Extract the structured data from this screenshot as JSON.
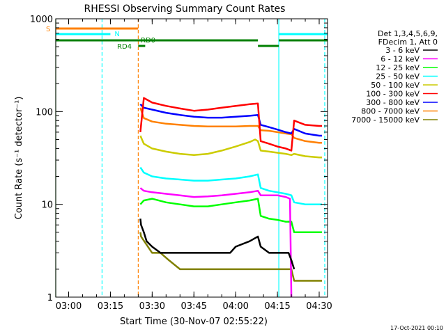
{
  "chart_data": {
    "type": "line",
    "title": "RHESSI Observing Summary Count Rates",
    "xlabel": "Start Time (30-Nov-07 02:55:22)",
    "ylabel": "Count Rate (s⁻¹ detector⁻¹)",
    "y_scale": "log",
    "ylim": [
      1,
      1000
    ],
    "xlim": [
      "02:55:22",
      "04:33:00"
    ],
    "x_ticks": [
      "03:00",
      "03:15",
      "03:30",
      "03:45",
      "04:00",
      "04:15",
      "04:30"
    ],
    "y_ticks": [
      "1",
      "10",
      "100",
      "1000"
    ],
    "legend_header": [
      "Det 1,3,4,5,6,9,",
      "FDecim 1, Att 0"
    ],
    "legend_position": "right",
    "timestamp": "17-Oct-2021 00:10",
    "series": [
      {
        "name": "3 - 6 keV",
        "color": "#000000",
        "x": [
          "03:25:45",
          "03:26",
          "03:27",
          "03:28",
          "03:30",
          "03:33",
          "03:36",
          "03:40",
          "03:45",
          "03:50",
          "03:55",
          "03:58",
          "04:00",
          "04:05",
          "04:08",
          "04:09",
          "04:12",
          "04:15",
          "04:17",
          "04:19",
          "04:20",
          "04:21"
        ],
        "values": [
          7,
          6,
          5,
          4,
          3.5,
          3,
          3,
          3,
          3,
          3,
          3,
          3,
          3.5,
          4,
          4.5,
          3.5,
          3,
          3,
          3,
          3,
          2.5,
          2
        ]
      },
      {
        "name": "6 - 12 keV",
        "color": "#ff00ff",
        "x": [
          "03:25:45",
          "03:27",
          "03:30",
          "03:35",
          "03:40",
          "03:45",
          "03:50",
          "03:55",
          "04:00",
          "04:05",
          "04:08",
          "04:09",
          "04:12",
          "04:15",
          "04:18",
          "04:19:30",
          "04:20"
        ],
        "values": [
          15,
          14,
          13.5,
          13,
          12.5,
          12,
          12.2,
          12.5,
          13,
          13.5,
          14,
          12.5,
          12.5,
          12.5,
          12,
          11.5,
          1
        ]
      },
      {
        "name": "12 - 25 keV",
        "color": "#00ff00",
        "x": [
          "03:25:45",
          "03:27",
          "03:30",
          "03:35",
          "03:40",
          "03:45",
          "03:50",
          "03:55",
          "04:00",
          "04:05",
          "04:08",
          "04:09",
          "04:12",
          "04:15",
          "04:18",
          "04:20",
          "04:21",
          "04:25",
          "04:30",
          "04:31"
        ],
        "values": [
          10,
          11,
          11.5,
          10.5,
          10,
          9.5,
          9.5,
          10,
          10.5,
          11,
          11.5,
          7.5,
          7,
          6.8,
          6.5,
          6.5,
          5,
          5,
          5,
          5
        ]
      },
      {
        "name": "25 - 50 keV",
        "color": "#00ffff",
        "x": [
          "03:25:45",
          "03:27",
          "03:30",
          "03:35",
          "03:40",
          "03:45",
          "03:50",
          "03:55",
          "04:00",
          "04:05",
          "04:08",
          "04:09",
          "04:12",
          "04:15",
          "04:18",
          "04:20",
          "04:21",
          "04:25",
          "04:30",
          "04:31"
        ],
        "values": [
          25,
          22,
          20,
          19,
          18.5,
          18,
          18,
          18.5,
          19,
          20,
          21,
          15,
          14,
          13.5,
          13,
          12.5,
          10.5,
          10,
          10,
          10
        ]
      },
      {
        "name": "50 - 100 keV",
        "color": "#cccc00",
        "x": [
          "03:25:45",
          "03:27",
          "03:30",
          "03:35",
          "03:40",
          "03:45",
          "03:50",
          "03:55",
          "04:00",
          "04:05",
          "04:07",
          "04:08",
          "04:09",
          "04:12",
          "04:15",
          "04:18",
          "04:20",
          "04:21",
          "04:25",
          "04:30",
          "04:31"
        ],
        "values": [
          55,
          45,
          40,
          37,
          35,
          34,
          35,
          38,
          42,
          47,
          50,
          48,
          38,
          37,
          36,
          35,
          34,
          35,
          33,
          32,
          32
        ]
      },
      {
        "name": "100 - 300 keV",
        "color": "#ff0000",
        "x": [
          "03:25:45",
          "03:27",
          "03:28",
          "03:30",
          "03:35",
          "03:40",
          "03:45",
          "03:50",
          "03:55",
          "04:00",
          "04:05",
          "04:08",
          "04:09",
          "04:12",
          "04:15",
          "04:18",
          "04:20",
          "04:21",
          "04:25",
          "04:30",
          "04:31"
        ],
        "values": [
          60,
          140,
          135,
          125,
          115,
          108,
          102,
          105,
          110,
          115,
          120,
          122,
          48,
          45,
          42,
          40,
          38,
          80,
          72,
          70,
          70
        ]
      },
      {
        "name": "300 - 800 keV",
        "color": "#0000ff",
        "x": [
          "03:25:45",
          "03:27",
          "03:30",
          "03:35",
          "03:40",
          "03:45",
          "03:50",
          "03:55",
          "04:00",
          "04:05",
          "04:08",
          "04:09",
          "04:12",
          "04:15",
          "04:18",
          "04:20",
          "04:21",
          "04:25",
          "04:30",
          "04:31"
        ],
        "values": [
          120,
          110,
          105,
          97,
          92,
          88,
          86,
          86,
          88,
          90,
          92,
          72,
          68,
          64,
          60,
          58,
          65,
          58,
          55,
          55
        ]
      },
      {
        "name": "800 - 7000 keV",
        "color": "#ff8000",
        "x": [
          "03:25:45",
          "03:27",
          "03:30",
          "03:35",
          "03:40",
          "03:45",
          "03:50",
          "03:55",
          "04:00",
          "04:05",
          "04:08",
          "04:09",
          "04:12",
          "04:15",
          "04:18",
          "04:20",
          "04:21",
          "04:25",
          "04:30",
          "04:31"
        ],
        "values": [
          110,
          85,
          78,
          74,
          72,
          70,
          69,
          69,
          69,
          70,
          70,
          63,
          62,
          60,
          58,
          57,
          52,
          48,
          46,
          46
        ]
      },
      {
        "name": "7000 - 15000 keV",
        "color": "#808000",
        "x": [
          "03:25:45",
          "03:26",
          "03:30",
          "03:33",
          "03:36",
          "03:40",
          "03:45",
          "03:50",
          "03:55",
          "04:00",
          "04:05",
          "04:08",
          "04:09",
          "04:12",
          "04:15",
          "04:17",
          "04:19",
          "04:20",
          "04:21",
          "04:25",
          "04:30",
          "04:31"
        ],
        "values": [
          5,
          4.5,
          3,
          3,
          2.5,
          2,
          2,
          2,
          2,
          2,
          2,
          2,
          2,
          2,
          2,
          2,
          2,
          2,
          1.5,
          1.5,
          1.5,
          1.5
        ]
      }
    ],
    "attenuator_bars": [
      {
        "label": "S",
        "color": "#ff8000",
        "start": "02:55:22",
        "end": "03:25:00",
        "level": 1
      },
      {
        "label": "N",
        "color": "#00ffff",
        "start": "02:55:22",
        "end": "03:15:00",
        "level": 2
      },
      {
        "label": "N",
        "color": "#00ffff",
        "start": "04:15:30",
        "end": "04:33:00",
        "level": 2
      },
      {
        "label": "RD0",
        "color": "#008000",
        "start": "02:55:22",
        "end": "04:08:00",
        "level": 3
      },
      {
        "label": "RD4",
        "color": "#008000",
        "start": "03:25:00",
        "end": "03:27:30",
        "level": 4
      },
      {
        "label": "RD4",
        "color": "#008000",
        "start": "04:08:00",
        "end": "04:15:30",
        "level": 4
      },
      {
        "label": "RD0",
        "color": "#008000",
        "start": "04:15:30",
        "end": "04:33:00",
        "level": 3
      }
    ],
    "vertical_markers": [
      {
        "time": "02:55:22",
        "color": "#008000",
        "style": "solid"
      },
      {
        "time": "03:12:00",
        "color": "#00ffff",
        "style": "dashed"
      },
      {
        "time": "03:25:00",
        "color": "#ff8000",
        "style": "dashed"
      },
      {
        "time": "04:15:30",
        "color": "#00ffff",
        "style": "solid"
      },
      {
        "time": "04:32:00",
        "color": "#00ffff",
        "style": "dashed"
      }
    ]
  }
}
